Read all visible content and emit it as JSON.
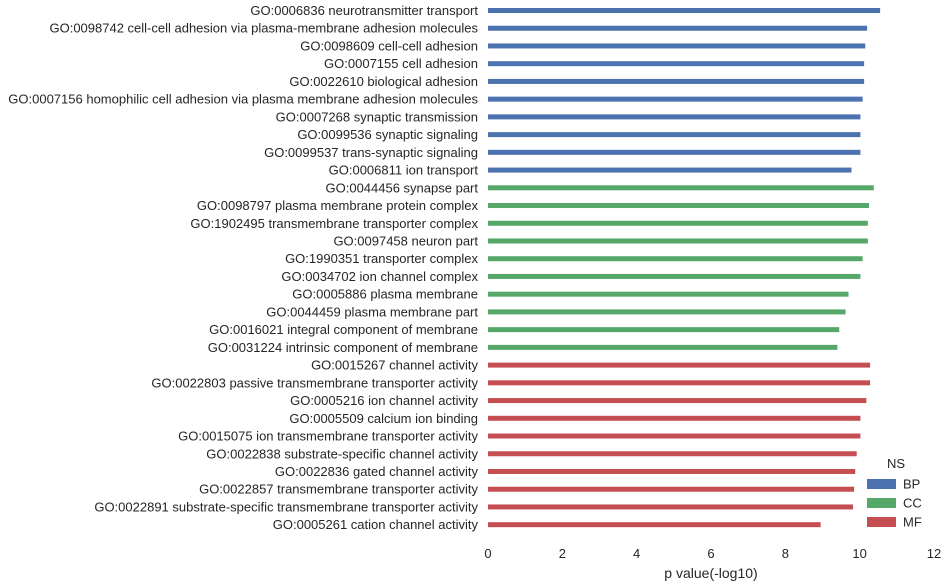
{
  "chart_data": {
    "type": "bar",
    "orientation": "horizontal",
    "xlabel": "p value(-log10)",
    "ylabel": "",
    "xlim": [
      0,
      12
    ],
    "xticks": [
      0,
      2,
      4,
      6,
      8,
      10,
      12
    ],
    "grid": false,
    "legend": {
      "title": "NS",
      "placement": "lower-right"
    },
    "colors": {
      "BP": "#4c72b0",
      "CC": "#55a868",
      "MF": "#c44e52"
    },
    "series": [
      {
        "name": "BP",
        "color": "#4c72b0"
      },
      {
        "name": "CC",
        "color": "#55a868"
      },
      {
        "name": "MF",
        "color": "#c44e52"
      }
    ],
    "bars": [
      {
        "term": "GO:0006836 neurotransmitter transport",
        "ns": "BP",
        "value": 10.55
      },
      {
        "term": "GO:0098742 cell-cell adhesion via plasma-membrane adhesion molecules",
        "ns": "BP",
        "value": 10.2
      },
      {
        "term": "GO:0098609 cell-cell adhesion",
        "ns": "BP",
        "value": 10.15
      },
      {
        "term": "GO:0007155 cell adhesion",
        "ns": "BP",
        "value": 10.12
      },
      {
        "term": "GO:0022610 biological adhesion",
        "ns": "BP",
        "value": 10.12
      },
      {
        "term": "GO:0007156 homophilic cell adhesion via plasma membrane adhesion molecules",
        "ns": "BP",
        "value": 10.08
      },
      {
        "term": "GO:0007268 synaptic transmission",
        "ns": "BP",
        "value": 10.02
      },
      {
        "term": "GO:0099536 synaptic signaling",
        "ns": "BP",
        "value": 10.02
      },
      {
        "term": "GO:0099537 trans-synaptic signaling",
        "ns": "BP",
        "value": 10.02
      },
      {
        "term": "GO:0006811 ion transport",
        "ns": "BP",
        "value": 9.78
      },
      {
        "term": "GO:0044456 synapse part",
        "ns": "CC",
        "value": 10.38
      },
      {
        "term": "GO:0098797 plasma membrane protein complex",
        "ns": "CC",
        "value": 10.25
      },
      {
        "term": "GO:1902495 transmembrane transporter complex",
        "ns": "CC",
        "value": 10.22
      },
      {
        "term": "GO:0097458 neuron part",
        "ns": "CC",
        "value": 10.22
      },
      {
        "term": "GO:1990351 transporter complex",
        "ns": "CC",
        "value": 10.08
      },
      {
        "term": "GO:0034702 ion channel complex",
        "ns": "CC",
        "value": 10.02
      },
      {
        "term": "GO:0005886 plasma membrane",
        "ns": "CC",
        "value": 9.7
      },
      {
        "term": "GO:0044459 plasma membrane part",
        "ns": "CC",
        "value": 9.62
      },
      {
        "term": "GO:0016021 integral component of membrane",
        "ns": "CC",
        "value": 9.45
      },
      {
        "term": "GO:0031224 intrinsic component of membrane",
        "ns": "CC",
        "value": 9.4
      },
      {
        "term": "GO:0015267 channel activity",
        "ns": "MF",
        "value": 10.28
      },
      {
        "term": "GO:0022803 passive transmembrane transporter activity",
        "ns": "MF",
        "value": 10.28
      },
      {
        "term": "GO:0005216 ion channel activity",
        "ns": "MF",
        "value": 10.18
      },
      {
        "term": "GO:0005509 calcium ion binding",
        "ns": "MF",
        "value": 10.02
      },
      {
        "term": "GO:0015075 ion transmembrane transporter activity",
        "ns": "MF",
        "value": 10.02
      },
      {
        "term": "GO:0022838 substrate-specific channel activity",
        "ns": "MF",
        "value": 9.92
      },
      {
        "term": "GO:0022836 gated channel activity",
        "ns": "MF",
        "value": 9.88
      },
      {
        "term": "GO:0022857 transmembrane transporter activity",
        "ns": "MF",
        "value": 9.85
      },
      {
        "term": "GO:0022891 substrate-specific transmembrane transporter activity",
        "ns": "MF",
        "value": 9.82
      },
      {
        "term": "GO:0005261 cation channel activity",
        "ns": "MF",
        "value": 8.95
      }
    ]
  }
}
